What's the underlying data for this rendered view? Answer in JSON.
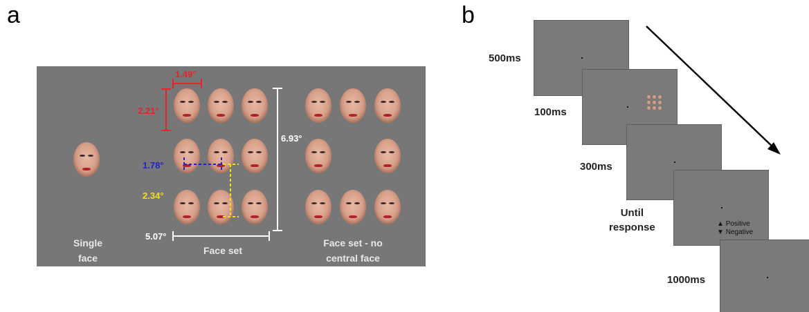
{
  "panel_a": {
    "letter": "a",
    "dims": {
      "width_face": "1.49°",
      "height_face": "2.21°",
      "horizontal_spacing": "1.78°",
      "vertical_spacing": "2.34°",
      "total_width": "5.07°",
      "total_height": "6.93°"
    },
    "captions": {
      "single_face": [
        "Single",
        "face"
      ],
      "face_set": "Face set",
      "face_set_no_central": [
        "Face set - no",
        "central face"
      ]
    },
    "colors": {
      "red": "#e0262a",
      "blue": "#2222cc",
      "yellow": "#f2e01c",
      "white": "#ffffff"
    }
  },
  "panel_b": {
    "letter": "b",
    "durations": [
      "500ms",
      "100ms",
      "300ms",
      "1000ms"
    ],
    "response_label": [
      "Until",
      "response"
    ],
    "response_options": {
      "positive": "Positive",
      "negative": "Negative",
      "up_icon": "up-triangle-icon",
      "down_icon": "down-triangle-icon"
    }
  }
}
